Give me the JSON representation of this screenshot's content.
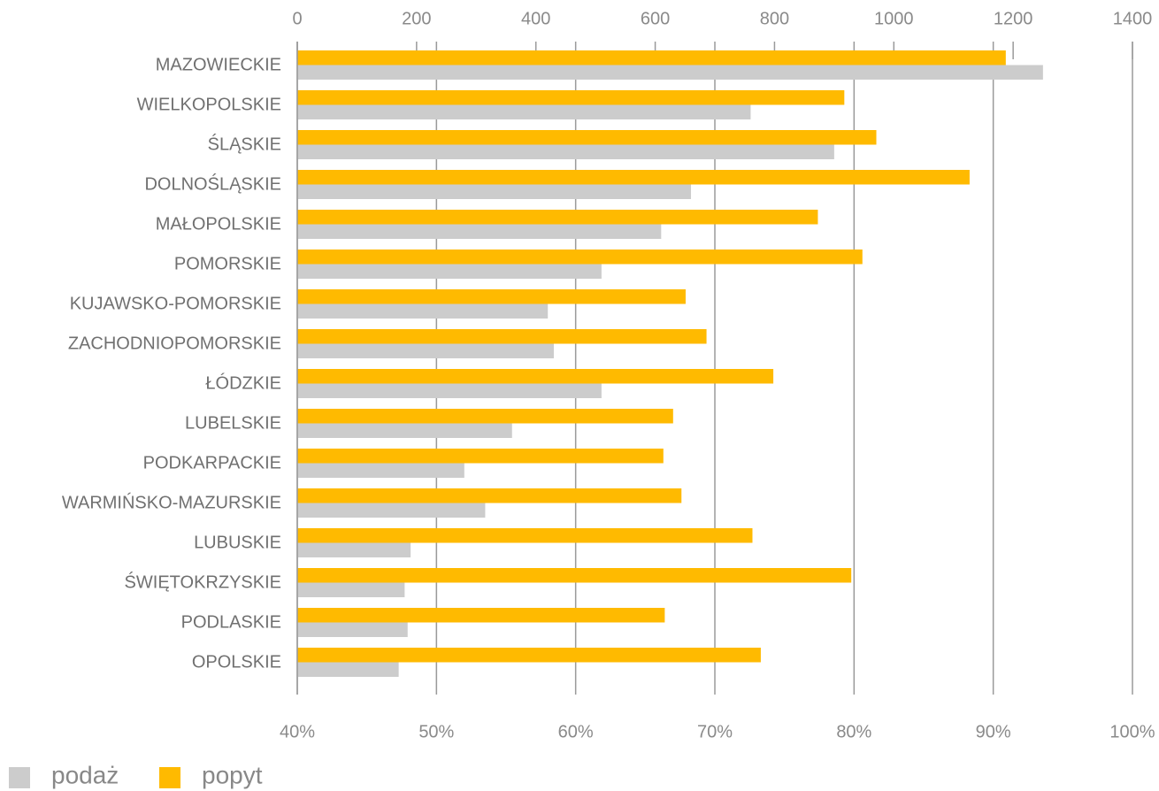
{
  "chart_data": {
    "type": "hbar",
    "categories": [
      "MAZOWIECKIE",
      "WIELKOPOLSKIE",
      "ŚLĄSKIE",
      "DOLNOŚLĄSKIE",
      "MAŁOPOLSKIE",
      "POMORSKIE",
      "KUJAWSKO-POMORSKIE",
      "ZACHODNIOPOMORSKIE",
      "ŁÓDZKIE",
      "LUBELSKIE",
      "PODKARPACKIE",
      "WARMIŃSKO-MAZURSKIE",
      "LUBUSKIE",
      "ŚWIĘTOKRZYSKIE",
      "PODLASKIE",
      "OPOLSKIE"
    ],
    "series": [
      {
        "name": "popyt",
        "color": "#ffba00",
        "axis": "x",
        "values": [
          90.9,
          79.3,
          81.6,
          88.3,
          77.4,
          80.6,
          67.9,
          69.4,
          74.2,
          67.0,
          66.3,
          67.6,
          72.7,
          79.8,
          66.4,
          73.3
        ]
      },
      {
        "name": "podaż",
        "color": "#cccccc",
        "axis": "x2",
        "values": [
          1250,
          760,
          900,
          660,
          610,
          510,
          420,
          430,
          510,
          360,
          280,
          315,
          190,
          180,
          185,
          170
        ]
      }
    ],
    "xlim": [
      40,
      100
    ],
    "xticks": [
      {
        "value": 40,
        "label": "40%"
      },
      {
        "value": 50,
        "label": "50%"
      },
      {
        "value": 60,
        "label": "60%"
      },
      {
        "value": 70,
        "label": "70%"
      },
      {
        "value": 80,
        "label": "80%"
      },
      {
        "value": 90,
        "label": "90%"
      },
      {
        "value": 100,
        "label": "100%"
      }
    ],
    "x2lim": [
      0,
      1400
    ],
    "x2ticks": [
      0,
      200,
      400,
      600,
      800,
      1000,
      1200,
      1400
    ],
    "grid": true,
    "legend": "bottom-left"
  }
}
